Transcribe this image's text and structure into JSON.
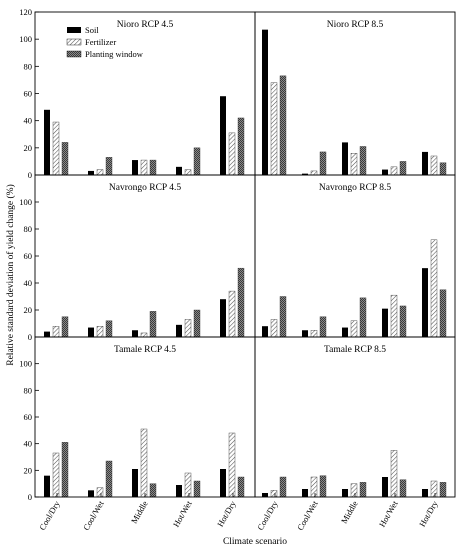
{
  "chart_data": {
    "type": "bar",
    "ylabel": "Relative standard deviation of yield change (%)",
    "xlabel": "Climate scenario",
    "ylim": [
      0,
      120
    ],
    "yticks": [
      0,
      20,
      40,
      60,
      80,
      100,
      120
    ],
    "categories": [
      "Cool/Dry",
      "Cool/Wet",
      "Middle",
      "Hot/Wet",
      "Hot/Dry"
    ],
    "legend": {
      "placement": "top-left of first panel",
      "entries": [
        "Soil",
        "Fertilizer",
        "Planting window"
      ]
    },
    "colors": {
      "soil": "#000000",
      "fertilizer_hatch": "#555555",
      "planting_fill": "#666666",
      "frame": "#000000"
    },
    "panels": [
      {
        "title": "Nioro RCP 4.5",
        "series": [
          {
            "name": "Soil",
            "values": [
              48,
              3,
              11,
              6,
              58
            ]
          },
          {
            "name": "Fertilizer",
            "values": [
              39,
              4,
              11,
              4,
              31
            ]
          },
          {
            "name": "Planting window",
            "values": [
              24,
              13,
              11,
              20,
              42
            ]
          }
        ]
      },
      {
        "title": "Nioro RCP 8.5",
        "series": [
          {
            "name": "Soil",
            "values": [
              107,
              1,
              24,
              4,
              17
            ]
          },
          {
            "name": "Fertilizer",
            "values": [
              68,
              3,
              16,
              6,
              14
            ]
          },
          {
            "name": "Planting window",
            "values": [
              73,
              17,
              21,
              10,
              9
            ]
          }
        ]
      },
      {
        "title": "Navrongo RCP 4.5",
        "series": [
          {
            "name": "Soil",
            "values": [
              4,
              7,
              5,
              9,
              28
            ]
          },
          {
            "name": "Fertilizer",
            "values": [
              8,
              8,
              3,
              13,
              34
            ]
          },
          {
            "name": "Planting window",
            "values": [
              15,
              12,
              19,
              20,
              51
            ]
          }
        ]
      },
      {
        "title": "Navrongo RCP 8.5",
        "series": [
          {
            "name": "Soil",
            "values": [
              8,
              5,
              7,
              21,
              51
            ]
          },
          {
            "name": "Fertilizer",
            "values": [
              13,
              5,
              12,
              31,
              72
            ]
          },
          {
            "name": "Planting window",
            "values": [
              30,
              15,
              29,
              23,
              35
            ]
          }
        ]
      },
      {
        "title": "Tamale RCP 4.5",
        "series": [
          {
            "name": "Soil",
            "values": [
              16,
              5,
              21,
              9,
              21
            ]
          },
          {
            "name": "Fertilizer",
            "values": [
              33,
              7,
              51,
              18,
              48
            ]
          },
          {
            "name": "Planting window",
            "values": [
              41,
              27,
              10,
              12,
              15
            ]
          }
        ]
      },
      {
        "title": "Tamale RCP 8.5",
        "series": [
          {
            "name": "Soil",
            "values": [
              3,
              6,
              6,
              15,
              6
            ]
          },
          {
            "name": "Fertilizer",
            "values": [
              5,
              15,
              10,
              35,
              12
            ]
          },
          {
            "name": "Planting window",
            "values": [
              15,
              16,
              11,
              13,
              11
            ]
          }
        ]
      }
    ]
  }
}
